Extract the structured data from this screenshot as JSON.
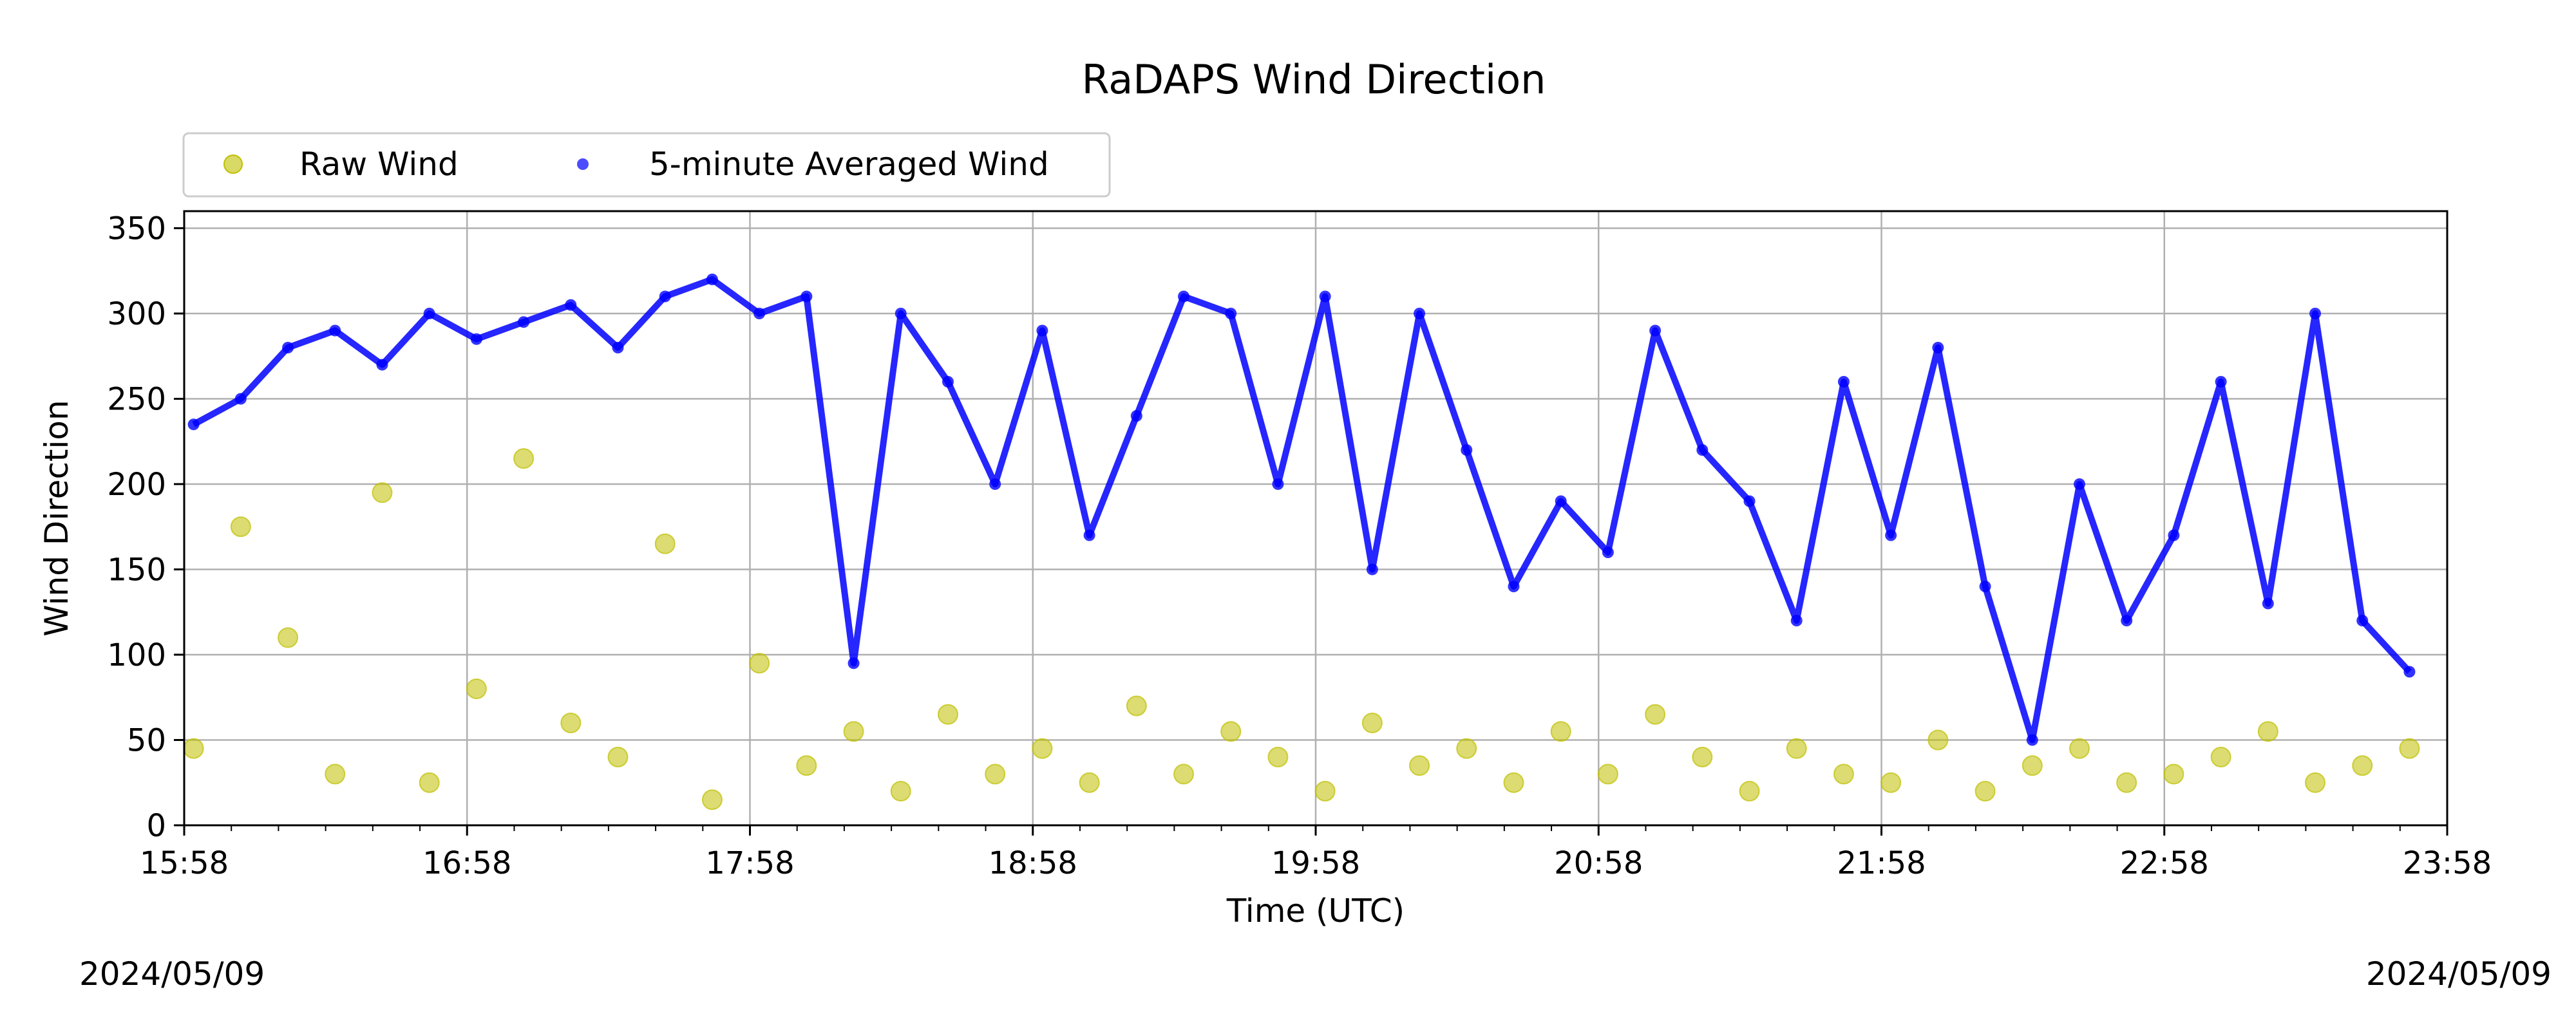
{
  "chart_data": {
    "type": "scatter",
    "title": "RaDAPS Wind Direction",
    "xlabel": "Time (UTC)",
    "ylabel": "Wind Direction",
    "xlim": [
      "15:58",
      "23:58"
    ],
    "ylim": [
      0,
      360
    ],
    "x_ticks": [
      "15:58",
      "16:58",
      "17:58",
      "18:58",
      "19:58",
      "20:58",
      "21:58",
      "22:58",
      "23:58"
    ],
    "y_ticks": [
      0,
      50,
      100,
      150,
      200,
      250,
      300,
      350
    ],
    "grid": true,
    "legend_position": "top-left",
    "start_date": "2024/05/09",
    "end_date": "2024/05/09",
    "series": [
      {
        "name": "Raw Wind",
        "color": "#bfbf00",
        "marker": "circle",
        "x": [
          "16:00",
          "16:10",
          "16:20",
          "16:30",
          "16:40",
          "16:50",
          "17:00",
          "17:10",
          "17:20",
          "17:30",
          "17:40",
          "17:50",
          "18:00",
          "18:10",
          "18:20",
          "18:30",
          "18:40",
          "18:50",
          "19:00",
          "19:10",
          "19:20",
          "19:30",
          "19:40",
          "19:50",
          "20:00",
          "20:10",
          "20:20",
          "20:30",
          "20:40",
          "20:50",
          "21:00",
          "21:10",
          "21:20",
          "21:30",
          "21:40",
          "21:50",
          "22:00",
          "22:10",
          "22:20",
          "22:30",
          "22:40",
          "22:50",
          "23:00",
          "23:10",
          "23:20",
          "23:30",
          "23:40",
          "23:50"
        ],
        "y": [
          45,
          175,
          110,
          30,
          195,
          25,
          80,
          215,
          60,
          40,
          165,
          15,
          95,
          35,
          55,
          20,
          65,
          30,
          45,
          25,
          70,
          30,
          55,
          40,
          20,
          60,
          35,
          45,
          25,
          55,
          30,
          65,
          40,
          20,
          45,
          30,
          25,
          50,
          20,
          35,
          45,
          25,
          30,
          40,
          55,
          25,
          35,
          45
        ]
      },
      {
        "name": "5-minute Averaged Wind",
        "color": "#0000ff",
        "marker": "point",
        "x": [
          "16:00",
          "16:10",
          "16:20",
          "16:30",
          "16:40",
          "16:50",
          "17:00",
          "17:10",
          "17:20",
          "17:30",
          "17:40",
          "17:50",
          "18:00",
          "18:10",
          "18:20",
          "18:30",
          "18:40",
          "18:50",
          "19:00",
          "19:10",
          "19:20",
          "19:30",
          "19:40",
          "19:50",
          "20:00",
          "20:10",
          "20:20",
          "20:30",
          "20:40",
          "20:50",
          "21:00",
          "21:10",
          "21:20",
          "21:30",
          "21:40",
          "21:50",
          "22:00",
          "22:10",
          "22:20",
          "22:30",
          "22:40",
          "22:50",
          "23:00",
          "23:10",
          "23:20",
          "23:30",
          "23:40",
          "23:50"
        ],
        "y": [
          235,
          250,
          280,
          290,
          270,
          300,
          285,
          295,
          305,
          280,
          310,
          320,
          300,
          310,
          95,
          300,
          260,
          200,
          290,
          170,
          240,
          310,
          300,
          200,
          310,
          150,
          300,
          220,
          140,
          190,
          160,
          290,
          220,
          190,
          120,
          260,
          170,
          280,
          140,
          50,
          200,
          120,
          170,
          260,
          130,
          300,
          120,
          90
        ]
      }
    ]
  }
}
